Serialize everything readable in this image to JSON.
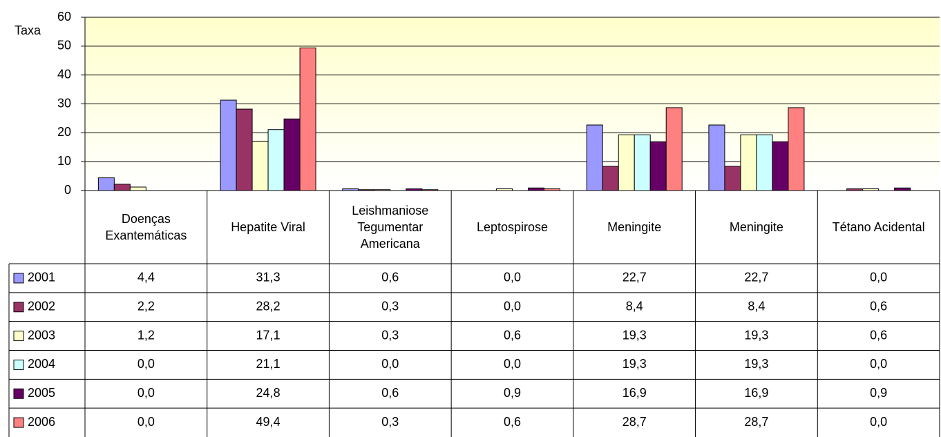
{
  "chart_data": {
    "type": "bar",
    "y_label": "Taxa",
    "categories": [
      "Doenças Exantemáticas",
      "Hepatite Viral",
      "Leishmaniose Tegumentar Americana",
      "Leptospirose",
      "Meningite",
      "Meningite",
      "Tétano Acidental"
    ],
    "series": [
      {
        "name": "2001",
        "color": "#9999ff",
        "values": [
          4.4,
          31.3,
          0.6,
          0.0,
          22.7,
          22.7,
          0.0
        ],
        "value_labels": [
          "4,4",
          "31,3",
          "0,6",
          "0,0",
          "22,7",
          "22,7",
          "0,0"
        ]
      },
      {
        "name": "2002",
        "color": "#993366",
        "values": [
          2.2,
          28.2,
          0.3,
          0.0,
          8.4,
          8.4,
          0.6
        ],
        "value_labels": [
          "2,2",
          "28,2",
          "0,3",
          "0,0",
          "8,4",
          "8,4",
          "0,6"
        ]
      },
      {
        "name": "2003",
        "color": "#ffffcc",
        "values": [
          1.2,
          17.1,
          0.3,
          0.6,
          19.3,
          19.3,
          0.6
        ],
        "value_labels": [
          "1,2",
          "17,1",
          "0,3",
          "0,6",
          "19,3",
          "19,3",
          "0,6"
        ]
      },
      {
        "name": "2004",
        "color": "#ccffff",
        "values": [
          0.0,
          21.1,
          0.0,
          0.0,
          19.3,
          19.3,
          0.0
        ],
        "value_labels": [
          "0,0",
          "21,1",
          "0,0",
          "0,0",
          "19,3",
          "19,3",
          "0,0"
        ]
      },
      {
        "name": "2005",
        "color": "#660066",
        "values": [
          0.0,
          24.8,
          0.6,
          0.9,
          16.9,
          16.9,
          0.9
        ],
        "value_labels": [
          "0,0",
          "24,8",
          "0,6",
          "0,9",
          "16,9",
          "16,9",
          "0,9"
        ]
      },
      {
        "name": "2006",
        "color": "#ff8080",
        "values": [
          0.0,
          49.4,
          0.3,
          0.6,
          28.7,
          28.7,
          0.0
        ],
        "value_labels": [
          "0,0",
          "49,4",
          "0,3",
          "0,6",
          "28,7",
          "28,7",
          "0,0"
        ]
      }
    ],
    "ylim": [
      0,
      60
    ],
    "yticks": [
      0,
      10,
      20,
      30,
      40,
      50,
      60
    ],
    "grid": true
  }
}
